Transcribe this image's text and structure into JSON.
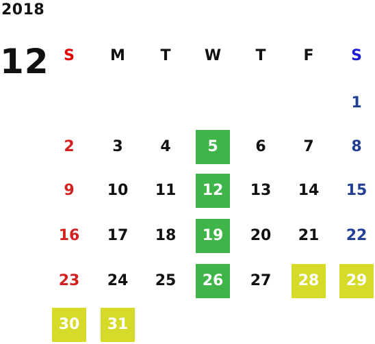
{
  "calendar": {
    "year": "2018",
    "month": "12",
    "weekdays": [
      {
        "label": "S",
        "color": "#e00000"
      },
      {
        "label": "M",
        "color": "#111111"
      },
      {
        "label": "T",
        "color": "#111111"
      },
      {
        "label": "W",
        "color": "#111111"
      },
      {
        "label": "T",
        "color": "#111111"
      },
      {
        "label": "F",
        "color": "#111111"
      },
      {
        "label": "S",
        "color": "#1a1ad6"
      }
    ],
    "weeks": [
      [
        {
          "day": ""
        },
        {
          "day": ""
        },
        {
          "day": ""
        },
        {
          "day": ""
        },
        {
          "day": ""
        },
        {
          "day": ""
        },
        {
          "day": "1",
          "type": "sat"
        }
      ],
      [
        {
          "day": "2",
          "type": "sun"
        },
        {
          "day": "3"
        },
        {
          "day": "4"
        },
        {
          "day": "5",
          "highlight": "green"
        },
        {
          "day": "6"
        },
        {
          "day": "7"
        },
        {
          "day": "8",
          "type": "sat"
        }
      ],
      [
        {
          "day": "9",
          "type": "sun"
        },
        {
          "day": "10"
        },
        {
          "day": "11"
        },
        {
          "day": "12",
          "highlight": "green"
        },
        {
          "day": "13"
        },
        {
          "day": "14"
        },
        {
          "day": "15",
          "type": "sat"
        }
      ],
      [
        {
          "day": "16",
          "type": "sun"
        },
        {
          "day": "17"
        },
        {
          "day": "18"
        },
        {
          "day": "19",
          "highlight": "green"
        },
        {
          "day": "20"
        },
        {
          "day": "21"
        },
        {
          "day": "22",
          "type": "sat"
        }
      ],
      [
        {
          "day": "23",
          "type": "sun"
        },
        {
          "day": "24"
        },
        {
          "day": "25"
        },
        {
          "day": "26",
          "highlight": "green"
        },
        {
          "day": "27"
        },
        {
          "day": "28",
          "highlight": "yellow"
        },
        {
          "day": "29",
          "highlight": "yellow"
        }
      ],
      [
        {
          "day": "30",
          "highlight": "yellow"
        },
        {
          "day": "31",
          "highlight": "yellow"
        },
        {
          "day": ""
        },
        {
          "day": ""
        },
        {
          "day": ""
        },
        {
          "day": ""
        },
        {
          "day": ""
        }
      ]
    ],
    "colors": {
      "sunday": "#d32121",
      "saturday": "#233f93",
      "highlight_green": "#3fb449",
      "highlight_yellow": "#d6da28",
      "text": "#111111"
    }
  }
}
